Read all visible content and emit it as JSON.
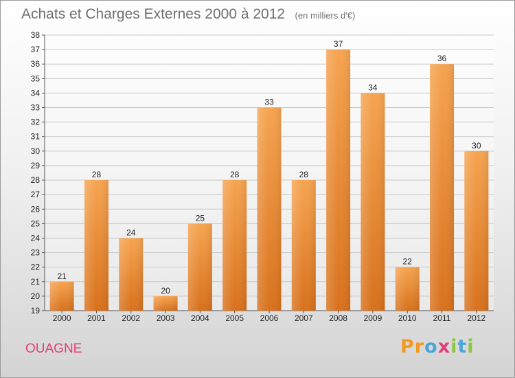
{
  "title": "Achats et Charges Externes 2000 à 2012",
  "unit_label": "(en milliers d'€)",
  "commune": "OUAGNE",
  "logo": {
    "text": "Proxiti",
    "letters": [
      {
        "ch": "P",
        "color": "#f39a1e"
      },
      {
        "ch": "r",
        "color": "#f39a1e"
      },
      {
        "ch": "o",
        "color": "#4aa6d8"
      },
      {
        "ch": "x",
        "color": "#e0407a"
      },
      {
        "ch": "i",
        "color": "#8cc63f"
      },
      {
        "ch": "t",
        "color": "#4aa6d8"
      },
      {
        "ch": "i",
        "color": "#8cc63f"
      }
    ]
  },
  "colors": {
    "bar_light": "#f6a450",
    "bar_dark": "#d8711c",
    "grid": "#c8c8c8"
  },
  "chart_data": {
    "type": "bar",
    "title": "Achats et Charges Externes 2000 à 2012",
    "subtitle": "(en milliers d'€)",
    "categories": [
      "2000",
      "2001",
      "2002",
      "2003",
      "2004",
      "2005",
      "2006",
      "2007",
      "2008",
      "2009",
      "2010",
      "2011",
      "2012"
    ],
    "values": [
      21,
      28,
      24,
      20,
      25,
      28,
      33,
      28,
      37,
      34,
      22,
      36,
      30
    ],
    "ylim": [
      19,
      38
    ],
    "yticks": [
      19,
      20,
      21,
      22,
      23,
      24,
      25,
      26,
      27,
      28,
      29,
      30,
      31,
      32,
      33,
      34,
      35,
      36,
      37,
      38
    ],
    "grid": true,
    "data_labels": true,
    "xlabel": "",
    "ylabel": ""
  }
}
